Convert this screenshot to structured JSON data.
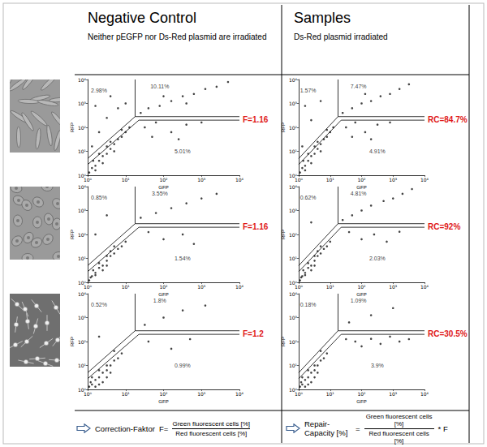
{
  "headers": [
    {
      "title": "Negative Control",
      "subtitle": "Neither pEGFP nor Ds-Red plasmid are irradiated"
    },
    {
      "title": "Samples",
      "subtitle": "Ds-Red plasmid  irradiated"
    }
  ],
  "chart_data": [
    {
      "type": "scatter",
      "xlabel": "GFP",
      "ylabel": "RFP",
      "log": true,
      "grid": false,
      "marker": "circle",
      "color": "#222222",
      "xlim": [
        1,
        10000
      ],
      "ylim": [
        1,
        10000
      ],
      "xticks": [
        {
          "value": 1,
          "label": "10⁰"
        },
        {
          "value": 10,
          "label": "10¹"
        },
        {
          "value": 100,
          "label": "10²"
        },
        {
          "value": 1000,
          "label": "10³"
        },
        {
          "value": 10000,
          "label": "10⁴"
        }
      ],
      "yticks": [
        {
          "value": 1,
          "label": "10⁰"
        },
        {
          "value": 10,
          "label": "10¹"
        },
        {
          "value": 100,
          "label": "10²"
        },
        {
          "value": 1000,
          "label": "10³"
        },
        {
          "value": 10000,
          "label": "10⁴"
        }
      ],
      "x": [
        1.1,
        1.3,
        1.6,
        2,
        2.5,
        3.2,
        4,
        5,
        6.3,
        7.9,
        10,
        12.6,
        2,
        3.2,
        5,
        1.6,
        2.5,
        4,
        1.4,
        7.9,
        1.3,
        2,
        3.2,
        1.6,
        6.3,
        4,
        10,
        25,
        40,
        79,
        160,
        320,
        630,
        1260,
        2500,
        5000,
        100,
        400,
        32,
        63,
        160,
        400,
        1000,
        50,
        250
      ],
      "values": [
        1.3,
        2,
        2.5,
        4,
        6.3,
        7.9,
        12.6,
        20,
        32,
        40,
        63,
        100,
        7.9,
        16,
        10,
        1.6,
        3.2,
        25,
        4,
        79,
        16,
        63,
        250,
        790,
        630,
        2000,
        1000,
        400,
        630,
        790,
        1260,
        2000,
        2500,
        4000,
        5000,
        7900,
        2000,
        1000,
        100,
        160,
        63,
        130,
        160,
        40,
        32
      ],
      "gates": [
        {
          "x": [
            1,
            17.8,
            17.8
          ],
          "y": [
            5,
            282,
            10000
          ]
        },
        {
          "x": [
            17.8,
            10000
          ],
          "y": [
            282,
            282
          ]
        },
        {
          "x": [
            1,
            22.4,
            10000
          ],
          "y": [
            2.8,
            200,
            200
          ]
        }
      ],
      "annotations": [
        "2.98%",
        "10.11%",
        "5.01%"
      ],
      "result": "F=1.16"
    },
    {
      "type": "scatter",
      "xlabel": "GFP",
      "ylabel": "RFP",
      "log": true,
      "grid": false,
      "marker": "circle",
      "color": "#222222",
      "xlim": [
        1,
        10000
      ],
      "ylim": [
        1,
        10000
      ],
      "xticks": [
        {
          "value": 1,
          "label": "10⁰"
        },
        {
          "value": 10,
          "label": "10¹"
        },
        {
          "value": 100,
          "label": "10²"
        },
        {
          "value": 1000,
          "label": "10³"
        },
        {
          "value": 10000,
          "label": "10⁴"
        }
      ],
      "yticks": [
        {
          "value": 1,
          "label": "10⁰"
        },
        {
          "value": 10,
          "label": "10¹"
        },
        {
          "value": 100,
          "label": "10²"
        },
        {
          "value": 1000,
          "label": "10³"
        },
        {
          "value": 10000,
          "label": "10⁴"
        }
      ],
      "x": [
        1.1,
        1.3,
        1.6,
        2,
        2.5,
        3.2,
        4,
        5,
        6.3,
        7.9,
        10,
        12.6,
        2,
        3.2,
        5,
        1.6,
        2.5,
        4,
        1.4,
        7.9,
        1.3,
        2.5,
        1.6,
        5,
        25,
        50,
        100,
        200,
        400,
        800,
        1600,
        3200,
        130,
        32,
        63,
        130,
        320,
        800,
        50,
        200
      ],
      "values": [
        1.3,
        2,
        2.5,
        4,
        6.3,
        7.9,
        12.6,
        20,
        32,
        40,
        63,
        100,
        7.9,
        16,
        10,
        1.6,
        3.2,
        25,
        4,
        79,
        16,
        200,
        790,
        1260,
        400,
        630,
        1000,
        1260,
        2000,
        2500,
        4000,
        6300,
        2500,
        100,
        160,
        63,
        130,
        160,
        40,
        32
      ],
      "gates": [
        {
          "x": [
            1,
            17.8,
            17.8
          ],
          "y": [
            5,
            282,
            10000
          ]
        },
        {
          "x": [
            17.8,
            10000
          ],
          "y": [
            282,
            282
          ]
        },
        {
          "x": [
            1,
            22.4,
            10000
          ],
          "y": [
            2.8,
            200,
            200
          ]
        }
      ],
      "annotations": [
        "1.57%",
        "7.47%",
        "4.91%"
      ],
      "result": "RC=84.7%"
    },
    {
      "type": "scatter",
      "xlabel": "GFP",
      "ylabel": "RFP",
      "log": true,
      "grid": false,
      "marker": "circle",
      "color": "#222222",
      "xlim": [
        1,
        10000
      ],
      "ylim": [
        1,
        10000
      ],
      "xticks": [
        {
          "value": 1,
          "label": "10⁰"
        },
        {
          "value": 10,
          "label": "10¹"
        },
        {
          "value": 100,
          "label": "10²"
        },
        {
          "value": 1000,
          "label": "10³"
        },
        {
          "value": 10000,
          "label": "10⁴"
        }
      ],
      "yticks": [
        {
          "value": 1,
          "label": "10⁰"
        },
        {
          "value": 10,
          "label": "10¹"
        },
        {
          "value": 100,
          "label": "10²"
        },
        {
          "value": 1000,
          "label": "10³"
        },
        {
          "value": 10000,
          "label": "10⁴"
        }
      ],
      "x": [
        1.1,
        1.3,
        1.6,
        2,
        2.5,
        3.2,
        4,
        5,
        6.3,
        7.9,
        10,
        2,
        3.2,
        1.6,
        2.5,
        4,
        1.4,
        1.2,
        3.2,
        5,
        1.6,
        3.2,
        25,
        63,
        160,
        400,
        1000,
        2500,
        40,
        100,
        320,
        630
      ],
      "values": [
        1.2,
        1.8,
        2.5,
        4,
        5,
        8,
        12.6,
        16,
        25,
        32,
        50,
        6.3,
        12.6,
        2,
        3.2,
        20,
        3.2,
        1.6,
        5,
        32,
        100,
        630,
        500,
        790,
        1260,
        2000,
        3200,
        5000,
        126,
        63,
        100,
        40
      ],
      "gates": [
        {
          "x": [
            1,
            17.8,
            17.8
          ],
          "y": [
            5,
            282,
            10000
          ]
        },
        {
          "x": [
            17.8,
            10000
          ],
          "y": [
            282,
            282
          ]
        },
        {
          "x": [
            1,
            22.4,
            10000
          ],
          "y": [
            2.8,
            200,
            200
          ]
        }
      ],
      "annotations": [
        "0.85%",
        "3.55%",
        "1.54%"
      ],
      "result": "F=1.16"
    },
    {
      "type": "scatter",
      "xlabel": "GFP",
      "ylabel": "RFP",
      "log": true,
      "grid": false,
      "marker": "circle",
      "color": "#222222",
      "xlim": [
        1,
        10000
      ],
      "ylim": [
        1,
        10000
      ],
      "xticks": [
        {
          "value": 1,
          "label": "10⁰"
        },
        {
          "value": 10,
          "label": "10¹"
        },
        {
          "value": 100,
          "label": "10²"
        },
        {
          "value": 1000,
          "label": "10³"
        },
        {
          "value": 10000,
          "label": "10⁴"
        }
      ],
      "yticks": [
        {
          "value": 1,
          "label": "10⁰"
        },
        {
          "value": 10,
          "label": "10¹"
        },
        {
          "value": 100,
          "label": "10²"
        },
        {
          "value": 1000,
          "label": "10³"
        },
        {
          "value": 10000,
          "label": "10⁴"
        }
      ],
      "x": [
        1.1,
        1.3,
        1.6,
        2,
        2.5,
        3.2,
        4,
        5,
        6.3,
        7.9,
        10,
        2,
        3.2,
        1.6,
        2.5,
        4,
        1.4,
        1.2,
        3.2,
        5,
        2.5,
        25,
        50,
        100,
        200,
        500,
        1000,
        2000,
        4000,
        40,
        100,
        250,
        630,
        1600
      ],
      "values": [
        1.2,
        1.8,
        2.5,
        4,
        5,
        8,
        12.6,
        16,
        25,
        32,
        50,
        6.3,
        12.6,
        2,
        3.2,
        20,
        3.2,
        1.6,
        5,
        32,
        320,
        400,
        630,
        1000,
        1600,
        2500,
        3200,
        5000,
        7900,
        126,
        63,
        100,
        50,
        130
      ],
      "gates": [
        {
          "x": [
            1,
            17.8,
            17.8
          ],
          "y": [
            5,
            282,
            10000
          ]
        },
        {
          "x": [
            17.8,
            10000
          ],
          "y": [
            282,
            282
          ]
        },
        {
          "x": [
            1,
            22.4,
            10000
          ],
          "y": [
            2.8,
            200,
            200
          ]
        }
      ],
      "annotations": [
        "0.62%",
        "4.81%",
        "2.03%"
      ],
      "result": "RC=92%"
    },
    {
      "type": "scatter",
      "xlabel": "GFP",
      "ylabel": "RFP",
      "log": true,
      "grid": false,
      "marker": "circle",
      "color": "#222222",
      "xlim": [
        1,
        10000
      ],
      "ylim": [
        1,
        10000
      ],
      "xticks": [
        {
          "value": 1,
          "label": "10⁰"
        },
        {
          "value": 10,
          "label": "10¹"
        },
        {
          "value": 100,
          "label": "10²"
        },
        {
          "value": 1000,
          "label": "10³"
        },
        {
          "value": 10000,
          "label": "10⁴"
        }
      ],
      "yticks": [
        {
          "value": 1,
          "label": "10⁰"
        },
        {
          "value": 10,
          "label": "10¹"
        },
        {
          "value": 100,
          "label": "10²"
        },
        {
          "value": 1000,
          "label": "10³"
        },
        {
          "value": 10000,
          "label": "10⁴"
        }
      ],
      "x": [
        1.1,
        1.3,
        1.6,
        2,
        2.5,
        3.2,
        4,
        5,
        6.3,
        7.9,
        1.3,
        2,
        3.2,
        1.6,
        2.5,
        4,
        1.2,
        2,
        3.2,
        5,
        2,
        32,
        100,
        320,
        1260,
        40,
        160,
        500
      ],
      "values": [
        1.3,
        1.6,
        2.5,
        3.2,
        5,
        6.3,
        10,
        16,
        20,
        32,
        3.2,
        6.3,
        10,
        1.3,
        2,
        5,
        2,
        1.6,
        3.2,
        40,
        160,
        500,
        1000,
        2000,
        3200,
        100,
        50,
        126
      ],
      "gates": [
        {
          "x": [
            1,
            17.8,
            17.8
          ],
          "y": [
            5,
            282,
            10000
          ]
        },
        {
          "x": [
            17.8,
            10000
          ],
          "y": [
            282,
            282
          ]
        },
        {
          "x": [
            1,
            22.4,
            10000
          ],
          "y": [
            2.8,
            200,
            200
          ]
        }
      ],
      "annotations": [
        "0.52%",
        "1.8%",
        "0.99%"
      ],
      "result": "F=1.2"
    },
    {
      "type": "scatter",
      "xlabel": "GFP",
      "ylabel": "RFP",
      "log": true,
      "grid": false,
      "marker": "circle",
      "color": "#222222",
      "xlim": [
        1,
        10000
      ],
      "ylim": [
        1,
        10000
      ],
      "xticks": [
        {
          "value": 1,
          "label": "10⁰"
        },
        {
          "value": 10,
          "label": "10¹"
        },
        {
          "value": 100,
          "label": "10²"
        },
        {
          "value": 1000,
          "label": "10³"
        },
        {
          "value": 10000,
          "label": "10⁴"
        }
      ],
      "yticks": [
        {
          "value": 1,
          "label": "10⁰"
        },
        {
          "value": 10,
          "label": "10¹"
        },
        {
          "value": 100,
          "label": "10²"
        },
        {
          "value": 1000,
          "label": "10³"
        },
        {
          "value": 10000,
          "label": "10⁴"
        }
      ],
      "x": [
        1.1,
        1.3,
        1.6,
        2,
        2.5,
        3.2,
        4,
        5,
        6.3,
        7.9,
        1.3,
        2,
        3.2,
        1.6,
        2.5,
        4,
        1.2,
        2,
        3.2,
        5,
        40,
        200,
        1000,
        32,
        63,
        100,
        200,
        400,
        800,
        1600,
        3200
      ],
      "values": [
        1.3,
        1.6,
        2.5,
        3.2,
        5,
        6.3,
        10,
        16,
        20,
        32,
        3.2,
        6.3,
        10,
        1.3,
        2,
        5,
        2,
        1.6,
        3.2,
        40,
        630,
        1260,
        2500,
        126,
        100,
        63,
        130,
        80,
        160,
        100,
        126
      ],
      "gates": [
        {
          "x": [
            1,
            17.8,
            17.8
          ],
          "y": [
            5,
            282,
            10000
          ]
        },
        {
          "x": [
            17.8,
            10000
          ],
          "y": [
            282,
            282
          ]
        },
        {
          "x": [
            1,
            22.4,
            10000
          ],
          "y": [
            2.8,
            200,
            200
          ]
        }
      ],
      "annotations": [
        "0.18%",
        "1.09%",
        "3.9%"
      ],
      "result": "RC=30.5%"
    }
  ],
  "formulas": [
    {
      "label": "Correction-Faktor",
      "lhs": "F=",
      "numerator": "Green fluorescent cells [%]",
      "denominator": "Red fluorescent cells [%]"
    },
    {
      "label": "Repair-Capacity [%]",
      "lhs": "=",
      "numerator": "Green fluorescent cells [%]",
      "denominator": "Red fluorescent cells [%]",
      "factor": "* F"
    }
  ]
}
